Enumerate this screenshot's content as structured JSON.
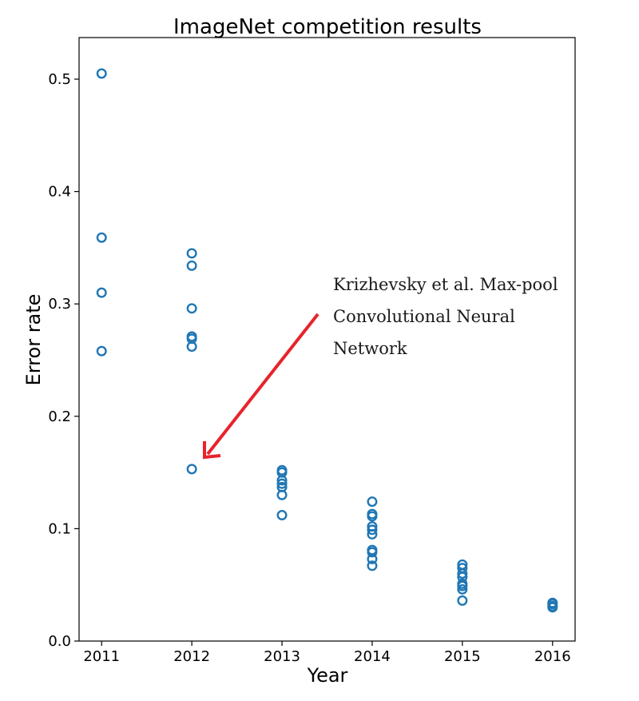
{
  "chart_data": {
    "type": "scatter",
    "title": "ImageNet competition results",
    "xlabel": "Year",
    "ylabel": "Error rate",
    "x_ticks": [
      "2011",
      "2012",
      "2013",
      "2014",
      "2015",
      "2016"
    ],
    "y_ticks": [
      "0.0",
      "0.1",
      "0.2",
      "0.3",
      "0.4",
      "0.5"
    ],
    "xlim": [
      2010.75,
      2016.25
    ],
    "ylim": [
      0.0,
      0.537
    ],
    "grid": false,
    "marker": "open-circle",
    "series_color": "#1f77b4",
    "points": [
      {
        "x": 2011,
        "y": 0.505
      },
      {
        "x": 2011,
        "y": 0.359
      },
      {
        "x": 2011,
        "y": 0.31
      },
      {
        "x": 2011,
        "y": 0.258
      },
      {
        "x": 2012,
        "y": 0.345
      },
      {
        "x": 2012,
        "y": 0.334
      },
      {
        "x": 2012,
        "y": 0.296
      },
      {
        "x": 2012,
        "y": 0.271
      },
      {
        "x": 2012,
        "y": 0.269
      },
      {
        "x": 2012,
        "y": 0.262
      },
      {
        "x": 2012,
        "y": 0.153
      },
      {
        "x": 2013,
        "y": 0.152
      },
      {
        "x": 2013,
        "y": 0.15
      },
      {
        "x": 2013,
        "y": 0.143
      },
      {
        "x": 2013,
        "y": 0.14
      },
      {
        "x": 2013,
        "y": 0.137
      },
      {
        "x": 2013,
        "y": 0.13
      },
      {
        "x": 2013,
        "y": 0.112
      },
      {
        "x": 2014,
        "y": 0.124
      },
      {
        "x": 2014,
        "y": 0.113
      },
      {
        "x": 2014,
        "y": 0.111
      },
      {
        "x": 2014,
        "y": 0.102
      },
      {
        "x": 2014,
        "y": 0.099
      },
      {
        "x": 2014,
        "y": 0.095
      },
      {
        "x": 2014,
        "y": 0.081
      },
      {
        "x": 2014,
        "y": 0.079
      },
      {
        "x": 2014,
        "y": 0.073
      },
      {
        "x": 2014,
        "y": 0.067
      },
      {
        "x": 2015,
        "y": 0.068
      },
      {
        "x": 2015,
        "y": 0.065
      },
      {
        "x": 2015,
        "y": 0.06
      },
      {
        "x": 2015,
        "y": 0.057
      },
      {
        "x": 2015,
        "y": 0.051
      },
      {
        "x": 2015,
        "y": 0.049
      },
      {
        "x": 2015,
        "y": 0.046
      },
      {
        "x": 2015,
        "y": 0.036
      },
      {
        "x": 2016,
        "y": 0.034
      },
      {
        "x": 2016,
        "y": 0.033
      },
      {
        "x": 2016,
        "y": 0.031
      },
      {
        "x": 2016,
        "y": 0.03
      }
    ],
    "annotation": {
      "lines": [
        "Krizhevsky et al. Max-pool",
        "Convolutional Neural",
        "Network"
      ],
      "arrow_color": "#e8232b",
      "points_to": {
        "x": 2012,
        "y": 0.153
      }
    }
  }
}
